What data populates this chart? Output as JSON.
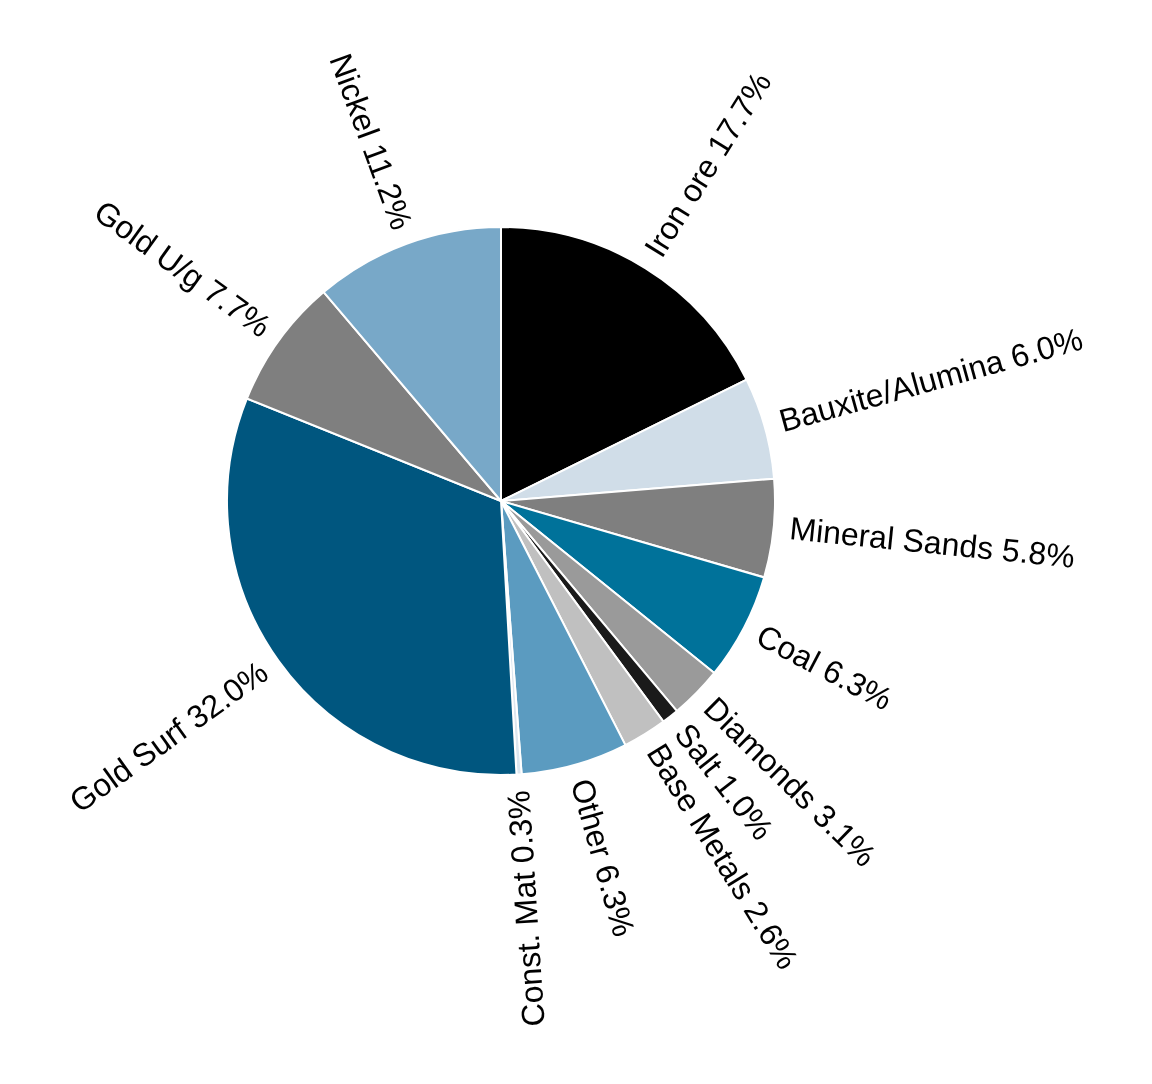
{
  "chart_data": {
    "type": "pie",
    "categories": [
      "Iron ore",
      "Bauxite/Alumina",
      "Mineral Sands",
      "Coal",
      "Diamonds",
      "Salt",
      "Base Metals",
      "Other",
      "Const. Mat",
      "Gold Surf",
      "Gold U/g",
      "Nickel"
    ],
    "values": [
      17.7,
      6.0,
      5.8,
      6.3,
      3.1,
      1.0,
      2.6,
      6.3,
      0.3,
      32.0,
      7.7,
      11.2
    ],
    "value_labels": [
      "17.7%",
      "6.0%",
      "5.8%",
      "6.3%",
      "3.1%",
      "1.0%",
      "2.6%",
      "6.3%",
      "0.3%",
      "32.0%",
      "7.7%",
      "11.2%"
    ],
    "colors": [
      "#000000",
      "#d0dde8",
      "#7f7f7f",
      "#00729a",
      "#9a9a9a",
      "#1a1a1a",
      "#c0c0c0",
      "#5b9bc0",
      "#dce6ef",
      "#00567f",
      "#7f7f7f",
      "#78a8c8"
    ]
  }
}
